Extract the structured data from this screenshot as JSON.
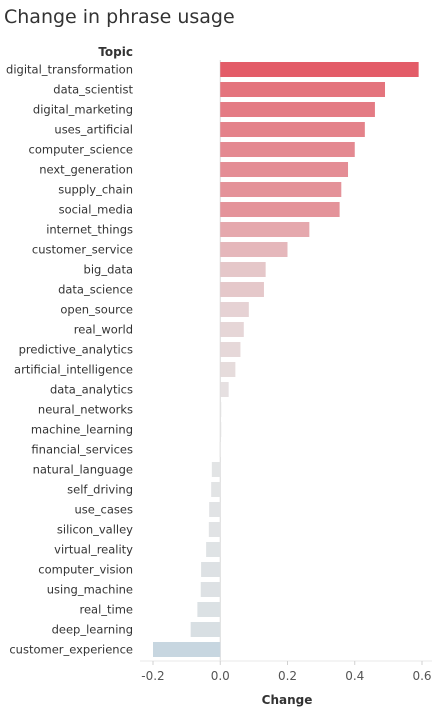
{
  "chart_data": {
    "type": "bar",
    "orientation": "horizontal",
    "title": "Change in phrase usage",
    "row_header": "Topic",
    "xlabel": "Change",
    "xlim": [
      -0.2,
      0.6
    ],
    "xticks": [
      -0.2,
      0.0,
      0.2,
      0.4,
      0.6
    ],
    "xtick_labels": [
      "-0.2",
      "0.0",
      "0.2",
      "0.4",
      "0.6"
    ],
    "grid": false,
    "color_scale": {
      "negative": "#c7d6e0",
      "neutral": "#e6e6e6",
      "positive": "#e35a66"
    },
    "categories": [
      "digital_transformation",
      "data_scientist",
      "digital_marketing",
      "uses_artificial",
      "computer_science",
      "next_generation",
      "supply_chain",
      "social_media",
      "internet_things",
      "customer_service",
      "big_data",
      "data_science",
      "open_source",
      "real_world",
      "predictive_analytics",
      "artificial_intelligence",
      "data_analytics",
      "neural_networks",
      "machine_learning",
      "financial_services",
      "natural_language",
      "self_driving",
      "use_cases",
      "silicon_valley",
      "virtual_reality",
      "computer_vision",
      "using_machine",
      "real_time",
      "deep_learning",
      "customer_experience"
    ],
    "values": [
      0.59,
      0.49,
      0.46,
      0.43,
      0.4,
      0.38,
      0.36,
      0.355,
      0.265,
      0.2,
      0.135,
      0.13,
      0.085,
      0.07,
      0.06,
      0.045,
      0.025,
      0.003,
      0.0,
      -0.002,
      -0.025,
      -0.027,
      -0.033,
      -0.034,
      -0.042,
      -0.057,
      -0.058,
      -0.068,
      -0.088,
      -0.2
    ]
  }
}
